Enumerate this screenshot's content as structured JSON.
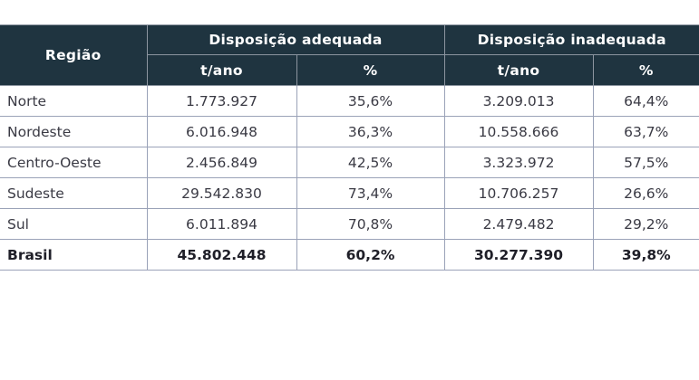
{
  "table": {
    "header": {
      "region": "Região",
      "group_adequate": "Disposição adequada",
      "group_inadequate": "Disposição inadequada",
      "unit_tons": "t/ano",
      "unit_pct": "%"
    },
    "rows": [
      {
        "region": "Norte",
        "adequate_t": "1.773.927",
        "adequate_pct": "35,6%",
        "inadequate_t": "3.209.013",
        "inadequate_pct": "64,4%"
      },
      {
        "region": "Nordeste",
        "adequate_t": "6.016.948",
        "adequate_pct": "36,3%",
        "inadequate_t": "10.558.666",
        "inadequate_pct": "63,7%"
      },
      {
        "region": "Centro-Oeste",
        "adequate_t": "2.456.849",
        "adequate_pct": "42,5%",
        "inadequate_t": "3.323.972",
        "inadequate_pct": "57,5%"
      },
      {
        "region": "Sudeste",
        "adequate_t": "29.542.830",
        "adequate_pct": "73,4%",
        "inadequate_t": "10.706.257",
        "inadequate_pct": "26,6%"
      },
      {
        "region": "Sul",
        "adequate_t": "6.011.894",
        "adequate_pct": "70,8%",
        "inadequate_t": "2.479.482",
        "inadequate_pct": "29,2%"
      }
    ],
    "total": {
      "region": "Brasil",
      "adequate_t": "45.802.448",
      "adequate_pct": "60,2%",
      "inadequate_t": "30.277.390",
      "inadequate_pct": "39,8%"
    }
  },
  "colors": {
    "header_bg": "#1f3440",
    "header_text": "#ffffff",
    "grid": "#9aa2b8"
  }
}
